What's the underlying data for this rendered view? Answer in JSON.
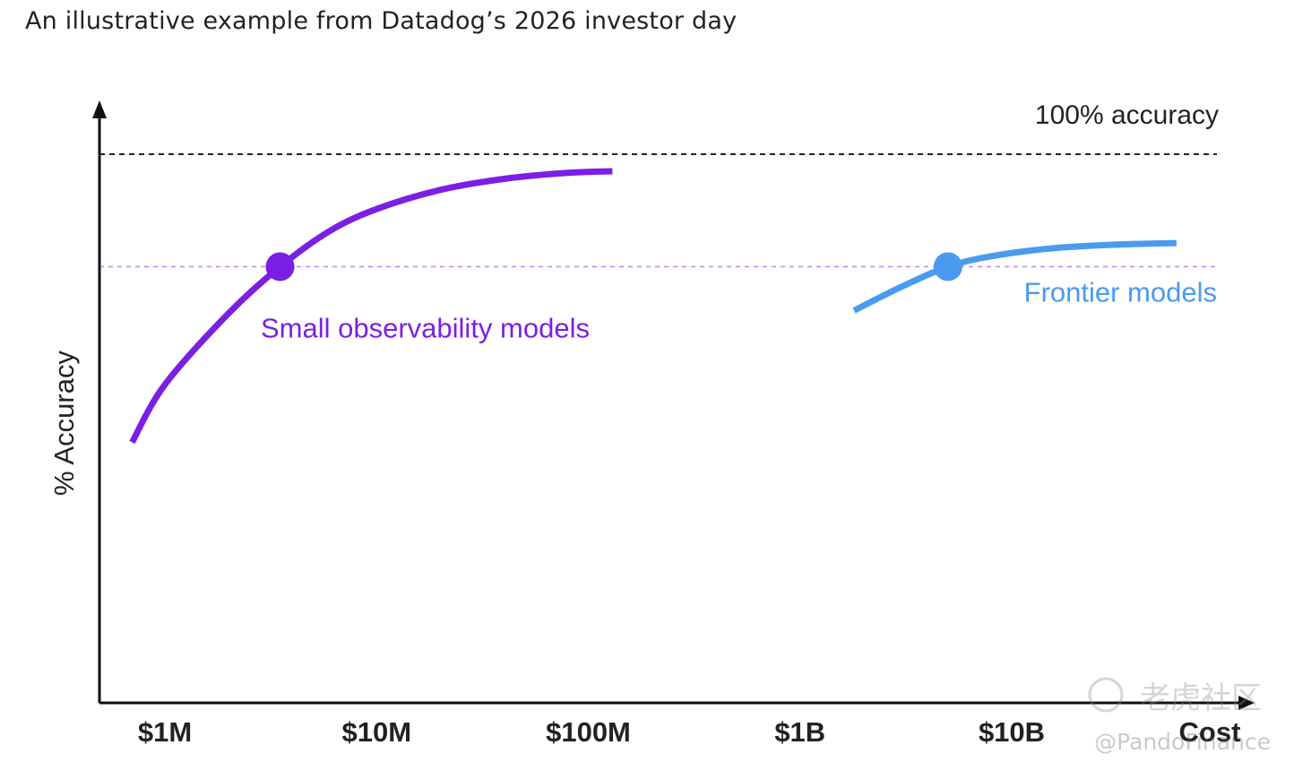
{
  "header": {
    "subtitle": "An illustrative example from Datadog’s 2026 investor day"
  },
  "watermark": {
    "handle": "@PandoFinance",
    "site": "老虎社区"
  },
  "colors": {
    "small_models": "#7B1FE4",
    "frontier_models": "#4A9BF0",
    "axis": "#111111",
    "reference_line": "#222222",
    "threshold_line": "#C58CF0"
  },
  "chart_data": {
    "type": "line",
    "xlabel": "Cost",
    "ylabel": "% Accuracy",
    "x_scale": "log",
    "x_tick_labels": [
      "$1M",
      "$10M",
      "$100M",
      "$1B",
      "$10B"
    ],
    "x_tick_values": [
      1000000,
      10000000,
      100000000,
      1000000000,
      10000000000
    ],
    "ylim": [
      0,
      100
    ],
    "reference_lines": [
      {
        "label": "100% accuracy",
        "y": 100,
        "style": "dashed"
      },
      {
        "label": "",
        "y": 79.5,
        "style": "dashed"
      }
    ],
    "series": [
      {
        "name": "Small observability models",
        "color": "#7B1FE4",
        "x": [
          700000,
          1000000,
          2000000,
          3500000,
          6000000,
          10000000,
          20000000,
          40000000,
          80000000,
          130000000
        ],
        "y": [
          47.5,
          58,
          71,
          79.5,
          86,
          90,
          93.5,
          95.5,
          96.6,
          96.9
        ],
        "marker": {
          "x": 3500000,
          "y": 79.5
        }
      },
      {
        "name": "Frontier models",
        "color": "#4A9BF0",
        "x": [
          1800000000,
          3000000000,
          5000000000,
          8000000000,
          15000000000,
          30000000000,
          60000000000
        ],
        "y": [
          71.5,
          75.8,
          79.5,
          81.4,
          82.8,
          83.5,
          83.8
        ],
        "marker": {
          "x": 5000000000,
          "y": 79.5
        }
      }
    ]
  }
}
